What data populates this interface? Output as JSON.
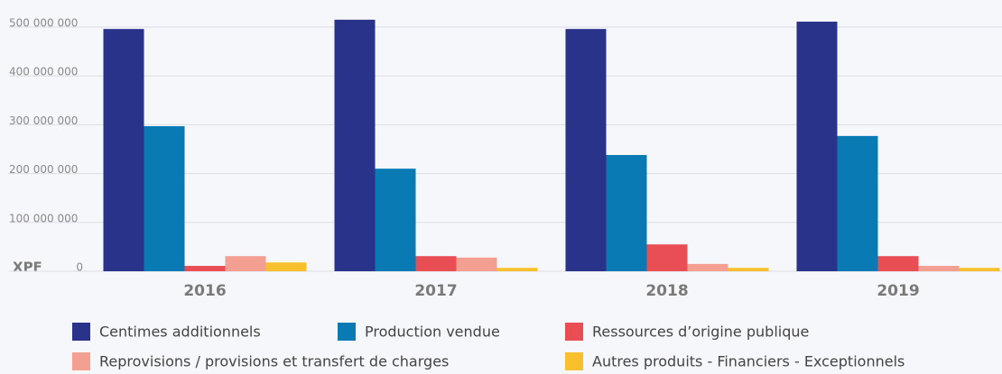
{
  "chart_data": {
    "type": "bar",
    "y_unit": "XPF",
    "categories": [
      "2016",
      "2017",
      "2018",
      "2019"
    ],
    "series": [
      {
        "name": "Centimes additionnels",
        "color": "#283389",
        "values": [
          496000000,
          515000000,
          496000000,
          511000000
        ]
      },
      {
        "name": "Production vendue",
        "color": "#0a7ab5",
        "values": [
          297000000,
          210000000,
          238000000,
          277000000
        ]
      },
      {
        "name": "Ressources d’origine publique",
        "color": "#e84e53",
        "values": [
          11000000,
          31000000,
          55000000,
          31000000
        ]
      },
      {
        "name": "Reprovisions / provisions et transfert de charges",
        "color": "#f3a093",
        "values": [
          31000000,
          28000000,
          15000000,
          11000000
        ]
      },
      {
        "name": "Autres produits - Financiers - Exceptionnels",
        "color": "#f9c02d",
        "values": [
          18000000,
          7000000,
          7000000,
          7000000
        ]
      }
    ],
    "ylim": [
      0,
      500000000
    ],
    "yticks": [
      0,
      {
        "value": 100000000,
        "label": "100 000 000"
      },
      {
        "value": 200000000,
        "label": "200 000 000"
      },
      {
        "value": 300000000,
        "label": "300 000 000"
      },
      {
        "value": 400000000,
        "label": "400 000 000"
      },
      {
        "value": 500000000,
        "label": "500 000 000"
      }
    ],
    "grid": true
  }
}
